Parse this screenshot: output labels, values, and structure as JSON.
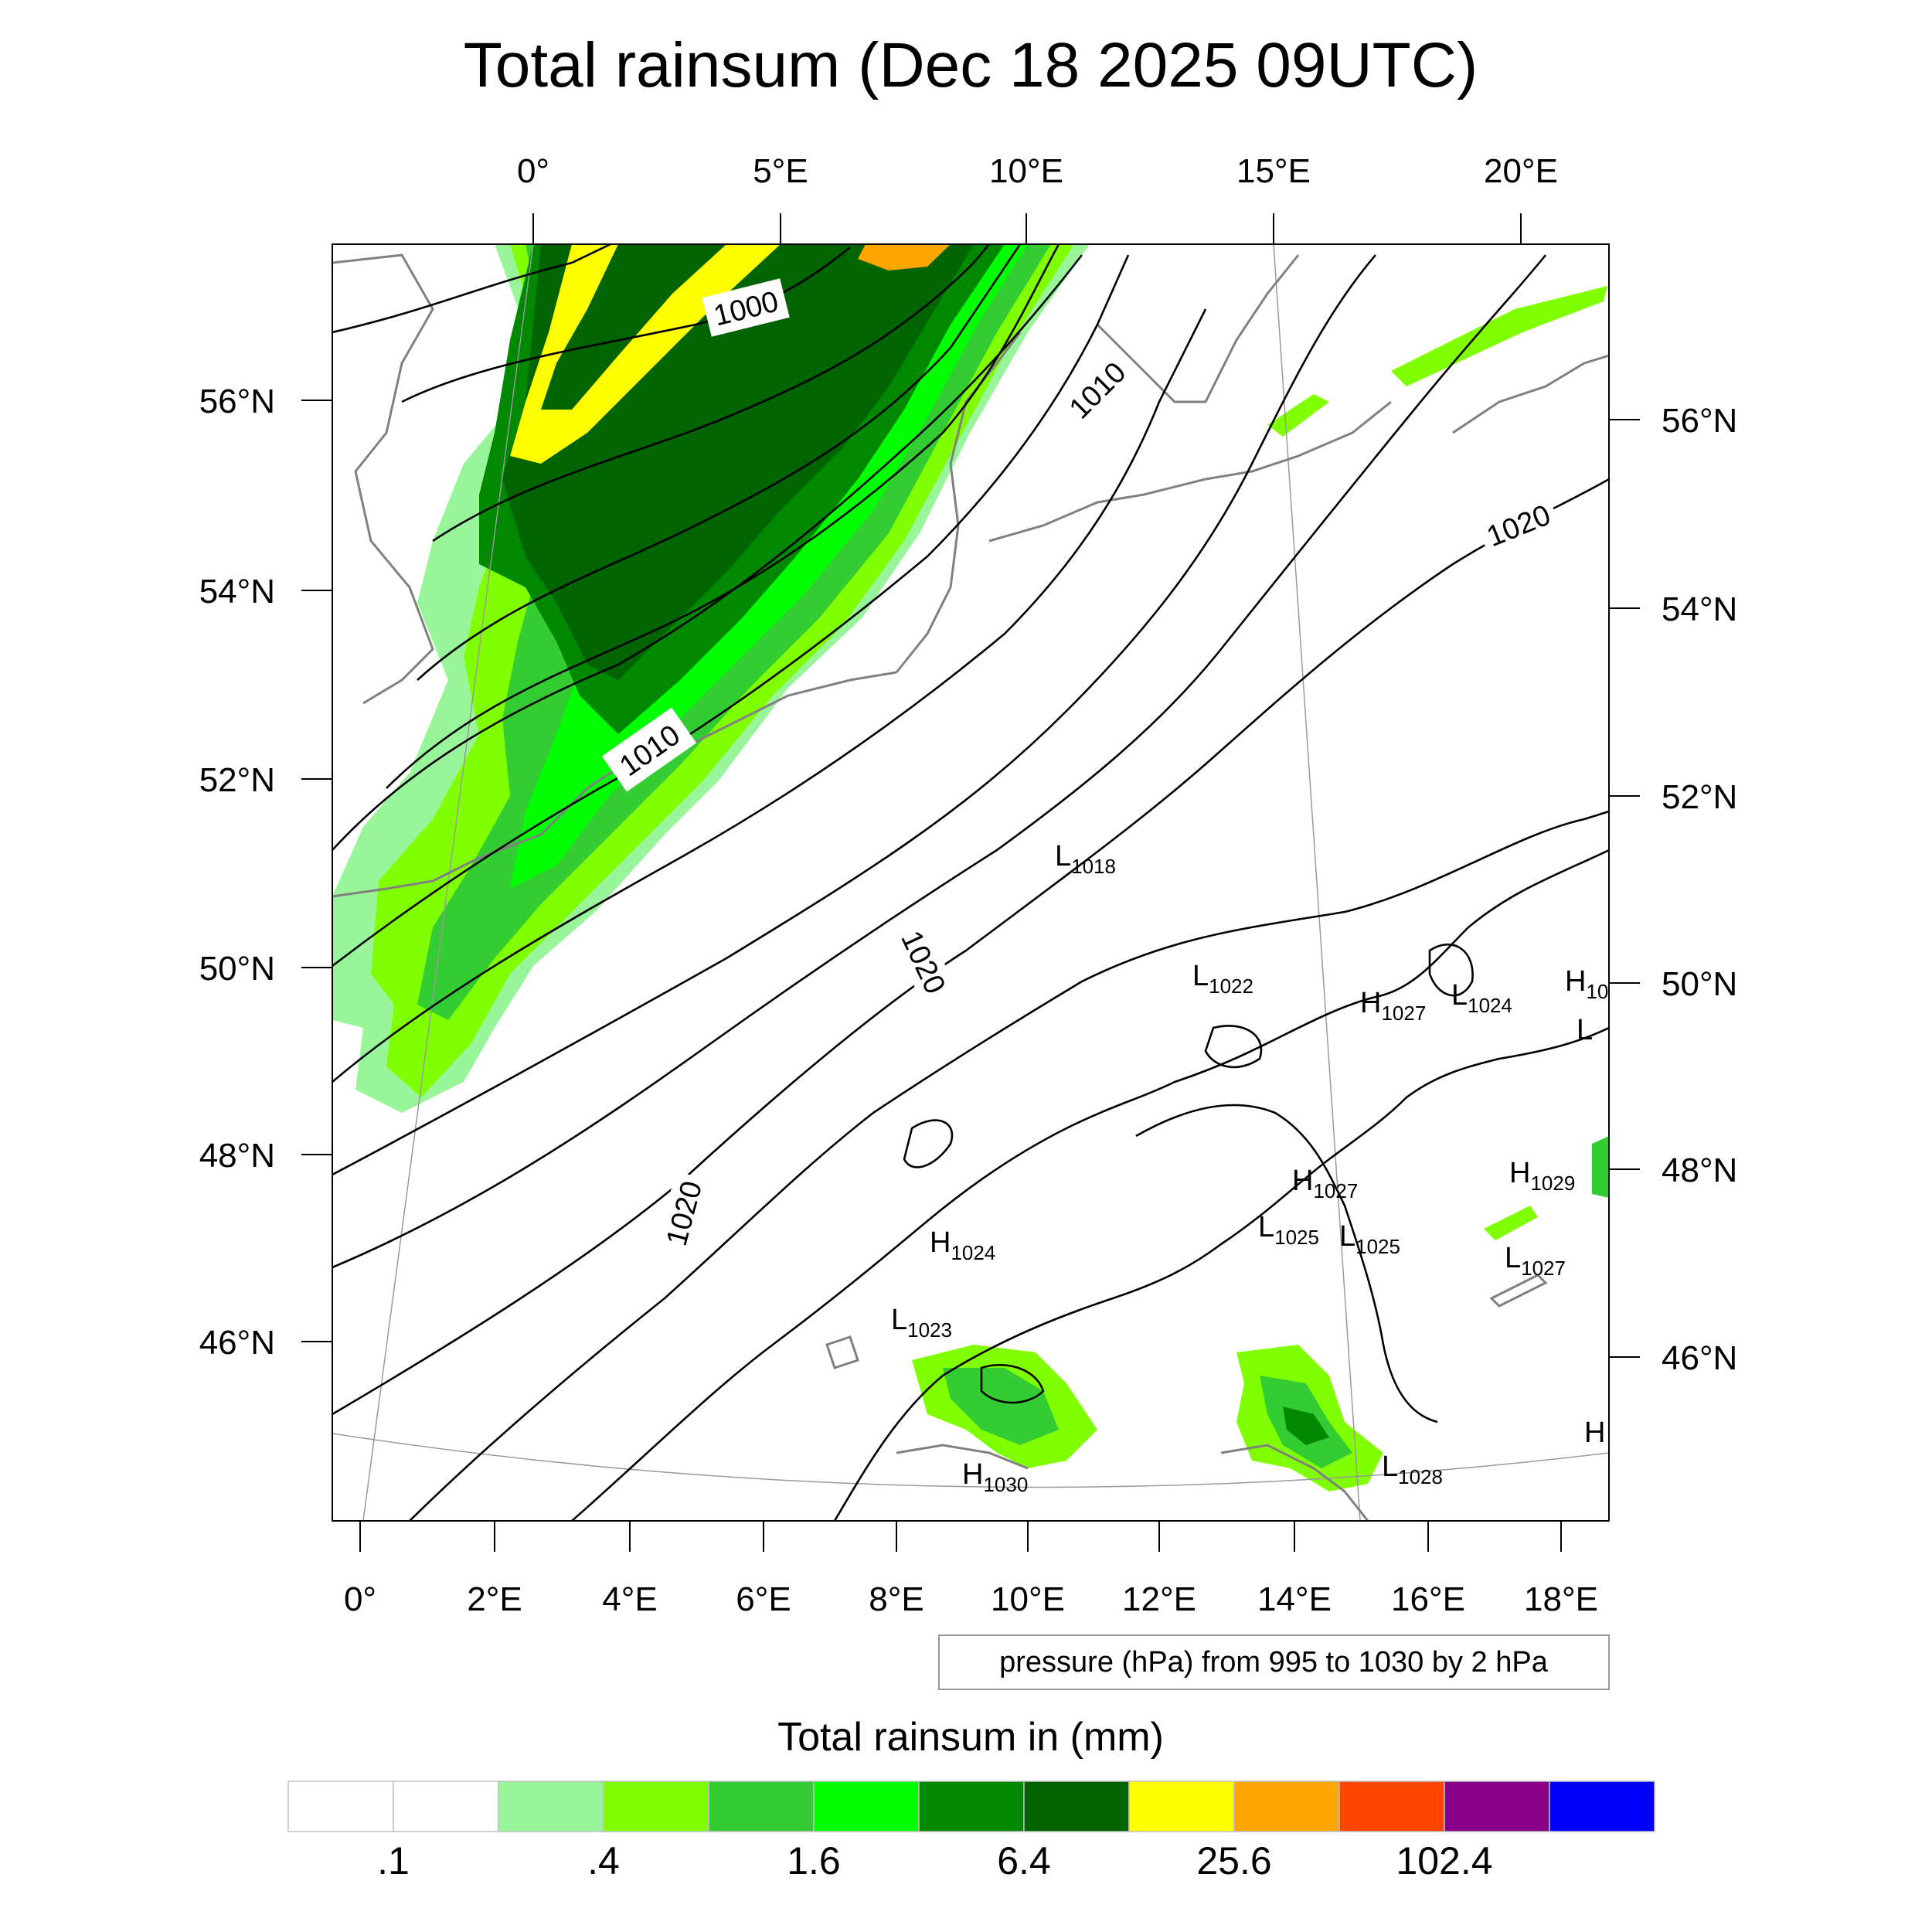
{
  "title": "Total rainsum (Dec 18 2025 09UTC)",
  "top_lon_labels": [
    "0°",
    "5°E",
    "10°E",
    "15°E",
    "20°E"
  ],
  "bottom_lon_labels": [
    "0°",
    "2°E",
    "4°E",
    "6°E",
    "8°E",
    "10°E",
    "12°E",
    "14°E",
    "16°E",
    "18°E"
  ],
  "left_lat_labels": [
    "56°N",
    "54°N",
    "52°N",
    "50°N",
    "48°N",
    "46°N"
  ],
  "right_lat_labels": [
    "56°N",
    "54°N",
    "52°N",
    "50°N",
    "48°N",
    "46°N"
  ],
  "contour_labels": [
    "1000",
    "1010",
    "1010",
    "1020",
    "1020",
    "1020"
  ],
  "pressure_centers": [
    {
      "type": "L",
      "value": "1018"
    },
    {
      "type": "L",
      "value": "1022"
    },
    {
      "type": "H",
      "value": "1027"
    },
    {
      "type": "L",
      "value": "1024"
    },
    {
      "type": "H",
      "value": "10"
    },
    {
      "type": "L",
      "value": ""
    },
    {
      "type": "H",
      "value": "1027"
    },
    {
      "type": "H",
      "value": "1029"
    },
    {
      "type": "L",
      "value": "1025"
    },
    {
      "type": "L",
      "value": "1025"
    },
    {
      "type": "L",
      "value": "1027"
    },
    {
      "type": "H",
      "value": "1024"
    },
    {
      "type": "L",
      "value": "1023"
    },
    {
      "type": "H",
      "value": "1030"
    },
    {
      "type": "L",
      "value": "1028"
    },
    {
      "type": "H",
      "value": ""
    }
  ],
  "info_box": "pressure (hPa) from 995 to 1030 by 2 hPa",
  "legend": {
    "title": "Total rainsum in (mm)",
    "colors": [
      "#ffffff",
      "#ffffff",
      "#99f599",
      "#80ff00",
      "#33cc33",
      "#00ff00",
      "#008800",
      "#006400",
      "#ffff00",
      "#ffa500",
      "#ff4500",
      "#8b008b",
      "#0000ff"
    ],
    "labels": [
      ".1",
      ".4",
      "1.6",
      "6.4",
      "25.6",
      "102.4"
    ]
  },
  "colors": {
    "coast": "#808080",
    "isobar": "#000000",
    "grid": "#999999"
  }
}
